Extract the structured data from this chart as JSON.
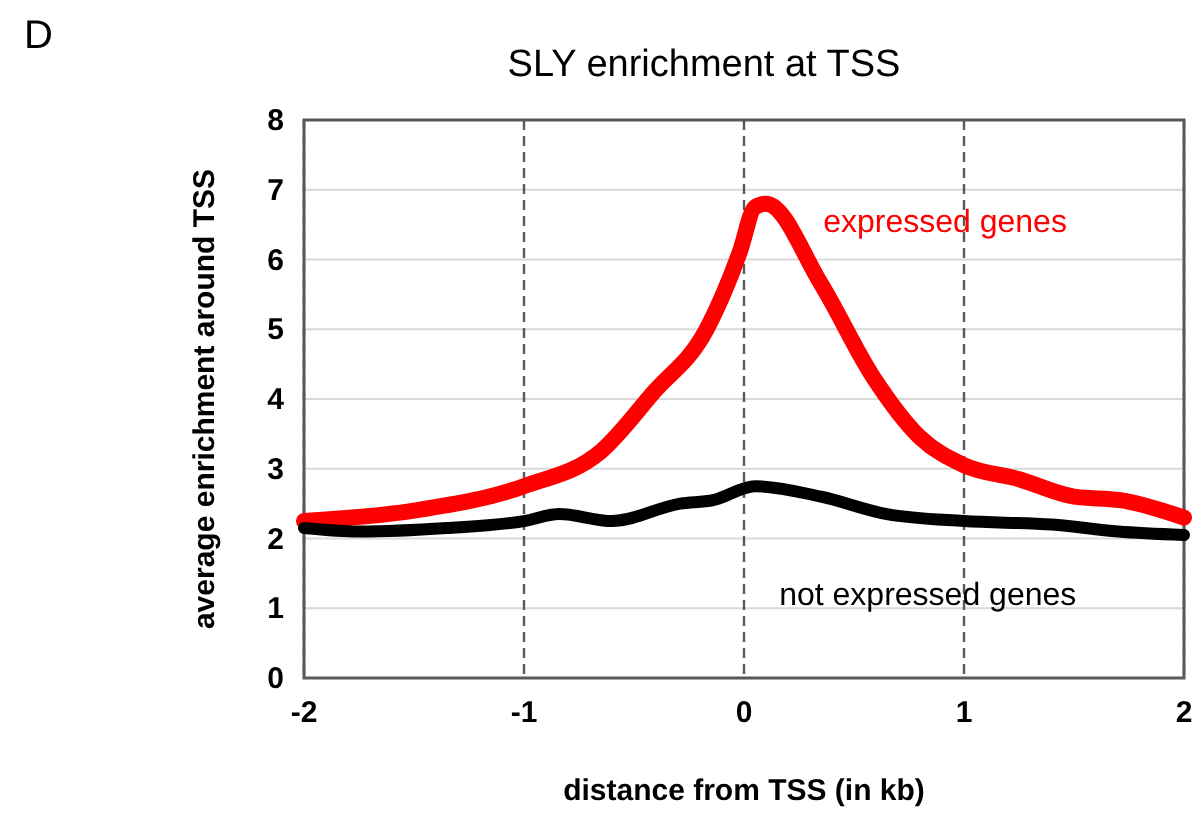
{
  "chart_data": {
    "type": "line",
    "title": "SLY enrichment at TSS",
    "xlabel": "distance from TSS (in kb)",
    "ylabel": "average enrichment around TSS",
    "annotations": [
      "D"
    ],
    "xlim": [
      -2,
      2
    ],
    "xticks": [
      -2,
      -1,
      0,
      1,
      2
    ],
    "ylim": [
      0,
      8
    ],
    "yticks": [
      0,
      1,
      2,
      3,
      4,
      5,
      6,
      7,
      8
    ],
    "grid": true,
    "marker": "none",
    "line_style": "solid",
    "series": [
      {
        "name": "expressed genes",
        "color": "#ff0000",
        "x": [
          -2,
          -1.5,
          -1,
          -0.65,
          -0.41,
          -0.17,
          -0.02,
          0.05,
          0.1,
          0.35,
          0.59,
          0.8,
          1,
          1.25,
          1.5,
          1.71,
          2
        ],
        "values": [
          2.25,
          2.4,
          2.75,
          3.25,
          4.1,
          5,
          6.1,
          6.75,
          6.8,
          5.65,
          4.3,
          3.45,
          3.05,
          2.85,
          2.6,
          2.55,
          2.3
        ]
      },
      {
        "name": "not expressed genes",
        "color": "#000000",
        "x": [
          -2,
          -1.75,
          -1.35,
          -1,
          -0.84,
          -0.6,
          -0.29,
          -0.14,
          0.05,
          0.35,
          0.65,
          1,
          1.4,
          1.7,
          2
        ],
        "values": [
          2.15,
          2.1,
          2.15,
          2.25,
          2.35,
          2.25,
          2.5,
          2.55,
          2.75,
          2.6,
          2.35,
          2.25,
          2.2,
          2.1,
          2.05
        ]
      }
    ]
  }
}
